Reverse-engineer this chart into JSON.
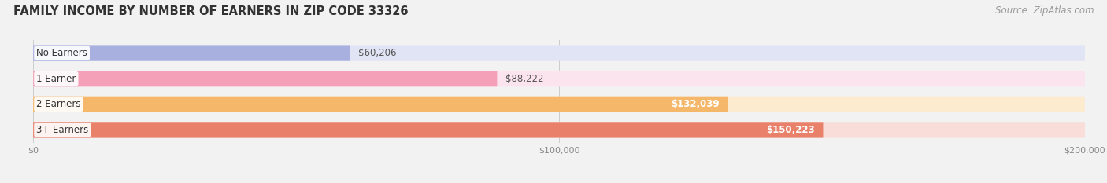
{
  "title": "FAMILY INCOME BY NUMBER OF EARNERS IN ZIP CODE 33326",
  "source": "Source: ZipAtlas.com",
  "categories": [
    "No Earners",
    "1 Earner",
    "2 Earners",
    "3+ Earners"
  ],
  "values": [
    60206,
    88222,
    132039,
    150223
  ],
  "labels": [
    "$60,206",
    "$88,222",
    "$132,039",
    "$150,223"
  ],
  "bar_colors": [
    "#a8b0e0",
    "#f4a0b8",
    "#f5b86a",
    "#e8806a"
  ],
  "bar_bg_colors": [
    "#e0e4f4",
    "#fce4ee",
    "#fdebd0",
    "#f9ddd9"
  ],
  "label_inside": [
    false,
    false,
    true,
    true
  ],
  "xlim": [
    0,
    200000
  ],
  "xticks": [
    0,
    100000,
    200000
  ],
  "xtick_labels": [
    "$0",
    "$100,000",
    "$200,000"
  ],
  "title_fontsize": 10.5,
  "source_fontsize": 8.5,
  "label_fontsize": 8.5,
  "category_fontsize": 8.5,
  "background_color": "#f2f2f2"
}
